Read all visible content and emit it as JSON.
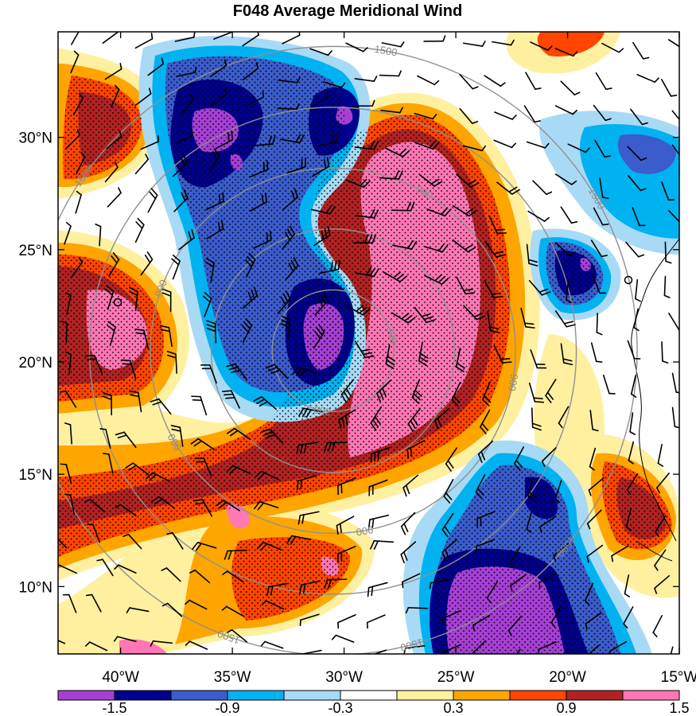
{
  "chart_data": {
    "type": "heatmap",
    "title": "F048 Average Meridional Wind",
    "x_ticks": [
      "40°W",
      "35°W",
      "30°W",
      "25°W",
      "20°W",
      "15°W"
    ],
    "y_ticks": [
      "30°N",
      "25°N",
      "20°N",
      "15°N",
      "10°N"
    ],
    "x_tick_values": [
      -40,
      -35,
      -30,
      -25,
      -20,
      -15
    ],
    "y_tick_values": [
      30,
      25,
      20,
      15,
      10
    ],
    "xlim": [
      -42.8,
      -15
    ],
    "ylim": [
      7,
      34.7
    ],
    "colorbar": {
      "labels": [
        "-1.5",
        "-0.9",
        "-0.3",
        "0.3",
        "0.9",
        "1.5"
      ],
      "colors": [
        "#a63fd6",
        "#00008c",
        "#3a5ccc",
        "#00b2f0",
        "#a8daf5",
        "#ffffff",
        "#fff0a0",
        "#ffa500",
        "#ff4500",
        "#b22222",
        "#ff77b4"
      ],
      "bounds": [
        -1.5,
        -1.2,
        -0.9,
        -0.6,
        -0.3,
        0.0,
        0.3,
        0.6,
        0.9,
        1.2,
        1.5
      ]
    },
    "range_ring_labels": [
      "300",
      "900",
      "1500"
    ],
    "range_rings_km": [
      300,
      600,
      900,
      1200,
      1500
    ],
    "storm_center": {
      "lon": -30.5,
      "lat": 20.5
    },
    "wind_barbs": true,
    "stippling": true
  }
}
